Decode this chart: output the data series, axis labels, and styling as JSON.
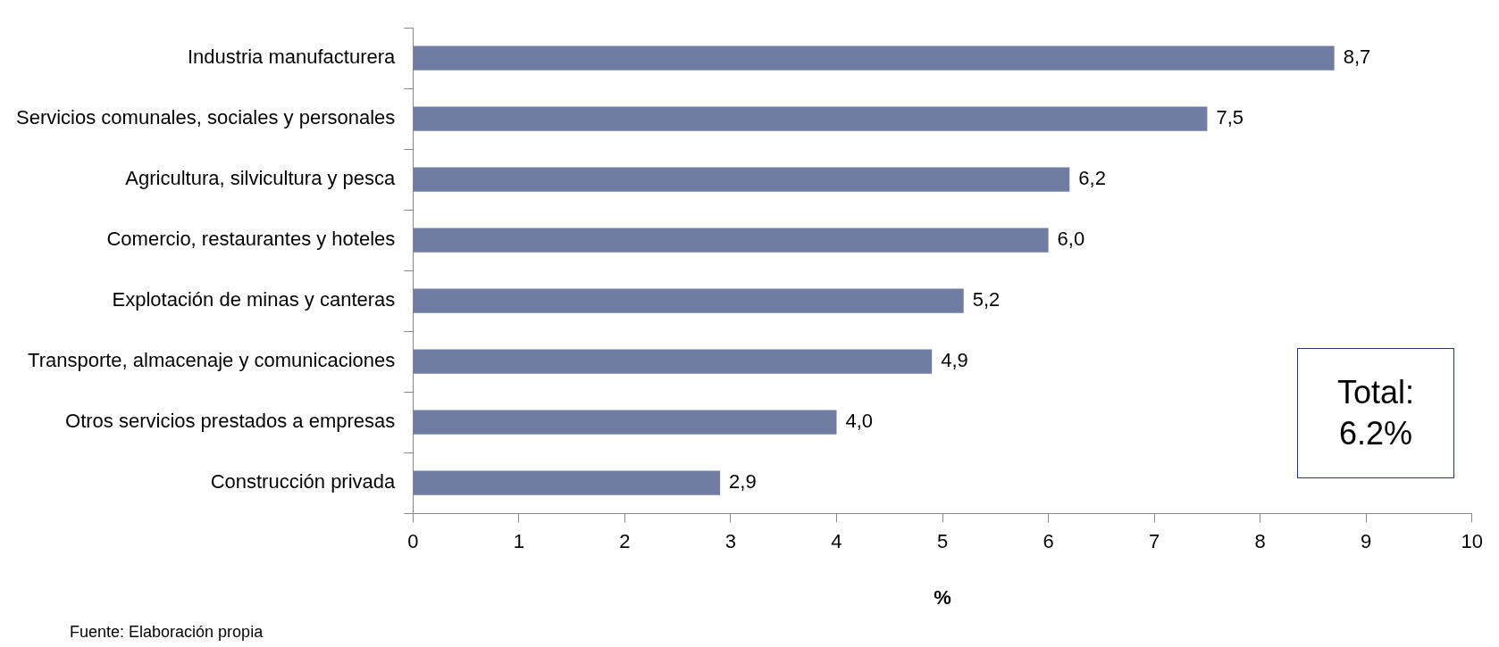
{
  "chart_data": {
    "type": "bar",
    "orientation": "horizontal",
    "xlabel": "%",
    "categories": [
      "Industria manufacturera",
      "Servicios comunales, sociales y personales",
      "Agricultura, silvicultura y pesca",
      "Comercio, restaurantes y hoteles",
      "Explotación de minas y canteras",
      "Transporte, almacenaje y comunicaciones",
      "Otros servicios prestados a empresas",
      "Construcción privada"
    ],
    "values": [
      8.7,
      7.5,
      6.2,
      6.0,
      5.2,
      4.9,
      4.0,
      2.9
    ],
    "value_labels": [
      "8,7",
      "7,5",
      "6,2",
      "6,0",
      "5,2",
      "4,9",
      "4,0",
      "2,9"
    ],
    "color": "#717ca3",
    "xlim": [
      0,
      10
    ],
    "xticks": [
      0,
      1,
      2,
      3,
      4,
      5,
      6,
      7,
      8,
      9,
      10
    ],
    "grid": false,
    "legend": false,
    "annotations": [
      "Total: 6.2%",
      "Fuente: Elaboración propia"
    ]
  }
}
